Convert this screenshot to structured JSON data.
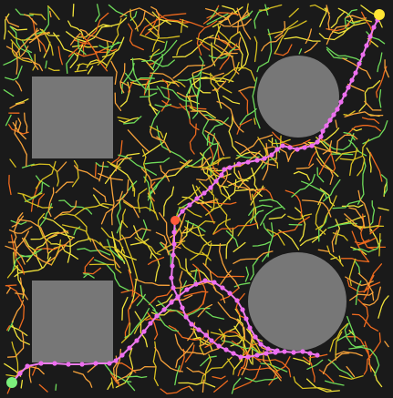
{
  "colors": {
    "background": "#1a1a1a",
    "obstacle": "#777777",
    "tree_colors": [
      "#f0e23a",
      "#ee6a1e",
      "#6fdc5a",
      "#d8c020",
      "#f7a23a"
    ],
    "path": "#ef7ef0",
    "path_node": "#ee6ef0",
    "start": "#7cf07c",
    "goal": "#ffe634",
    "junction": "#ff5a3a"
  },
  "obstacles": [
    {
      "shape": "rect",
      "name": "obstacle-top-left"
    },
    {
      "shape": "circle",
      "name": "obstacle-top-right"
    },
    {
      "shape": "rect",
      "name": "obstacle-bottom-left"
    },
    {
      "shape": "circle",
      "name": "obstacle-bottom-right"
    }
  ],
  "markers": {
    "start": "start-node",
    "goal": "goal-node",
    "junction": "junction-node"
  }
}
